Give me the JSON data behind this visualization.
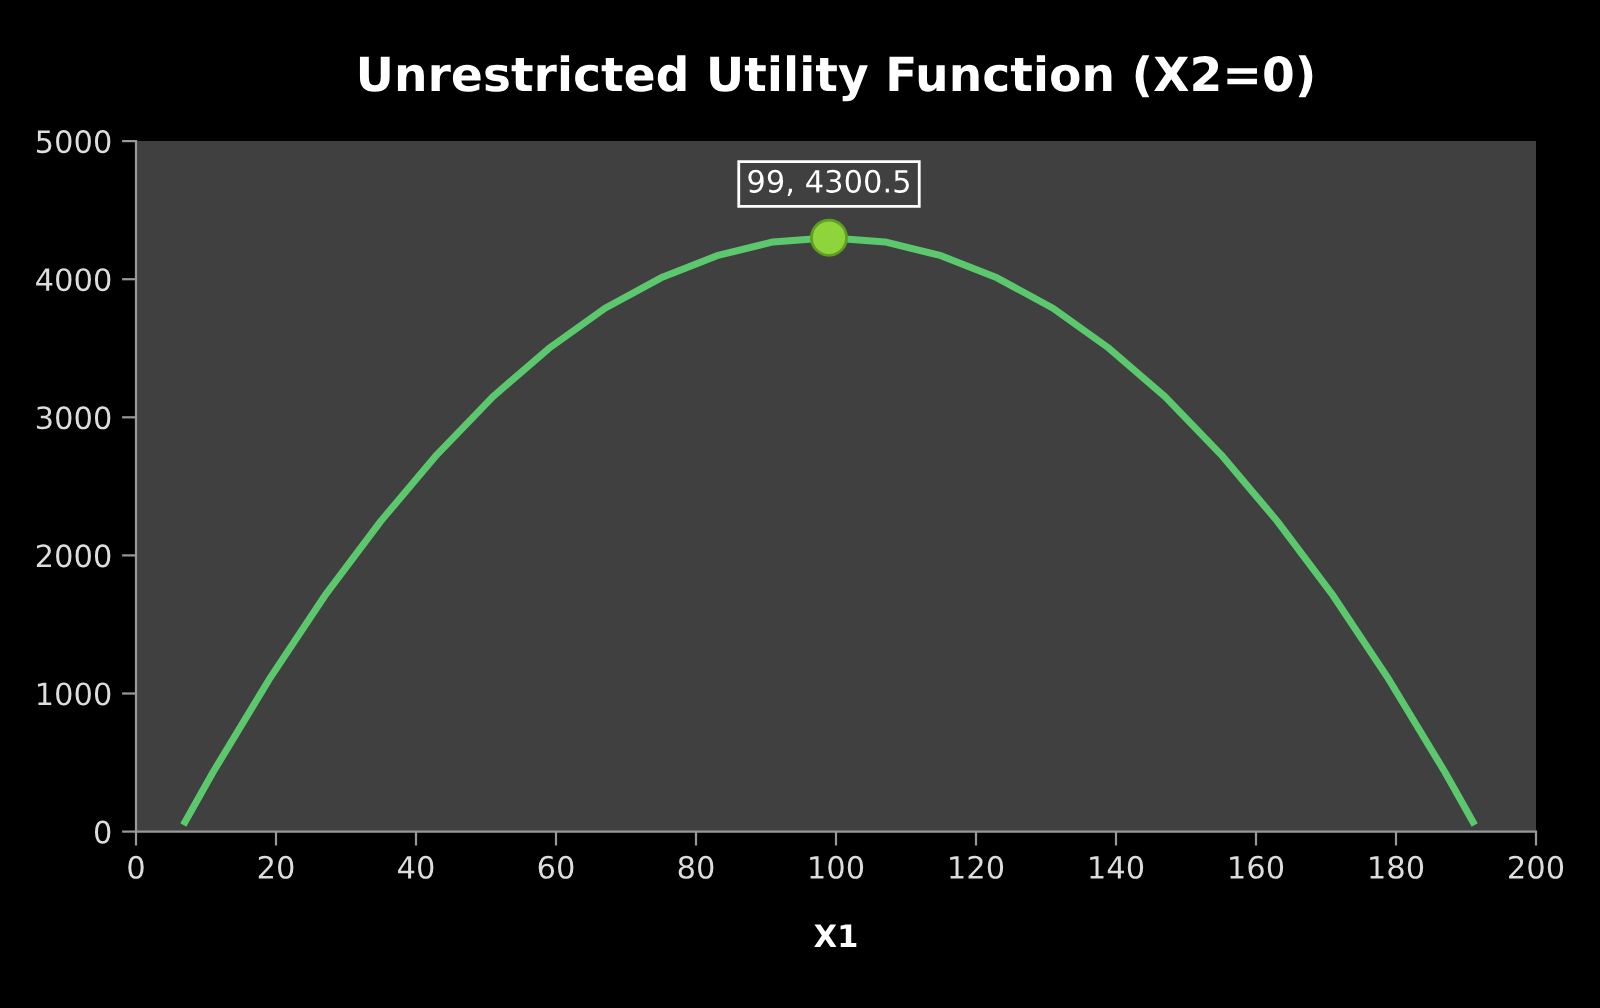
{
  "chart_data": {
    "type": "line",
    "title": "Unrestricted Utility Function (X2=0)",
    "xlabel": "X1",
    "xlim": [
      0,
      200
    ],
    "xticks": [
      0,
      20,
      40,
      60,
      80,
      100,
      120,
      140,
      160,
      180,
      200
    ],
    "ylim": [
      0,
      5000
    ],
    "yticks": [
      0,
      1000,
      2000,
      3000,
      4000,
      5000
    ],
    "grid": false,
    "series": [
      {
        "marker": "none",
        "color": "#5cc86e",
        "x": [
          7,
          11,
          19,
          27,
          35,
          43,
          51,
          59,
          67,
          75,
          83,
          91,
          99,
          107,
          115,
          123,
          131,
          139,
          147,
          155,
          163,
          171,
          179,
          187,
          191
        ],
        "values": [
          70,
          430,
          1100,
          1710,
          2250,
          2730,
          3150,
          3500,
          3790,
          4010,
          4170,
          4270,
          4300,
          4270,
          4170,
          4010,
          3790,
          3500,
          3150,
          2730,
          2250,
          1710,
          1100,
          430,
          70
        ]
      },
      {
        "type": "scatter",
        "marker": "circle",
        "color": "#8fd43a",
        "x": [
          99
        ],
        "values": [
          4300.5
        ],
        "value_labels": [
          "99, 4300.5"
        ]
      }
    ]
  }
}
